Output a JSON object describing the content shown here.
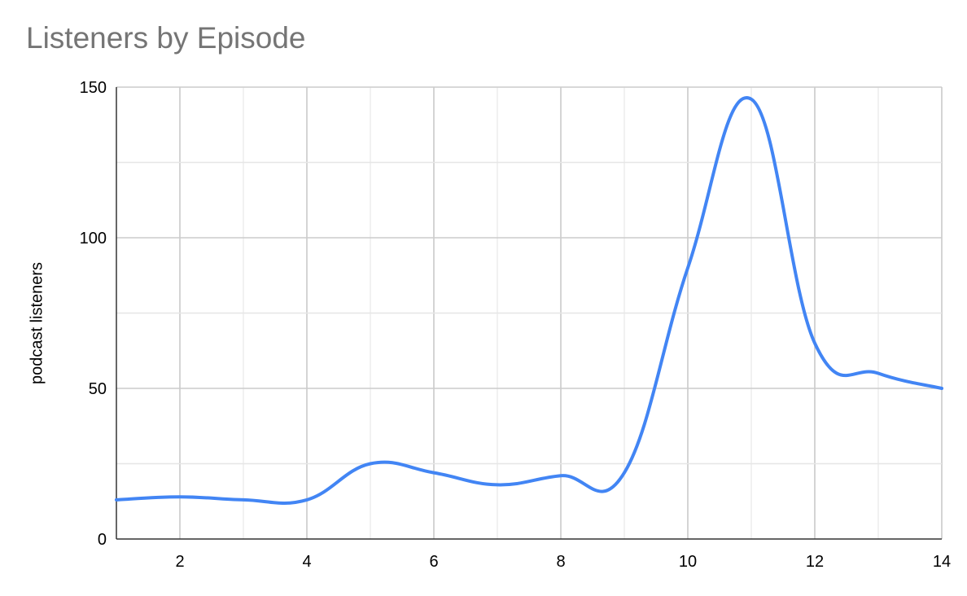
{
  "chart_data": {
    "type": "line",
    "title": "Listeners by Episode",
    "xlabel": "",
    "ylabel": "podcast listeners",
    "x": [
      1,
      2,
      3,
      4,
      5,
      6,
      7,
      8,
      9,
      10,
      11,
      12,
      13,
      14
    ],
    "series": [
      {
        "values": [
          13,
          14,
          13,
          13,
          25,
          22,
          18,
          21,
          22,
          90,
          146,
          65,
          55,
          50
        ]
      }
    ],
    "xlim": [
      1,
      14
    ],
    "ylim": [
      0,
      150
    ],
    "x_ticks": [
      2,
      4,
      6,
      8,
      10,
      12,
      14
    ],
    "y_ticks": [
      0,
      50,
      100,
      150
    ],
    "grid": true,
    "legend": "none",
    "line_color": "#4285f4",
    "grid_color": "#cccccc",
    "axis_color": "#333333",
    "title_color": "#757575"
  }
}
